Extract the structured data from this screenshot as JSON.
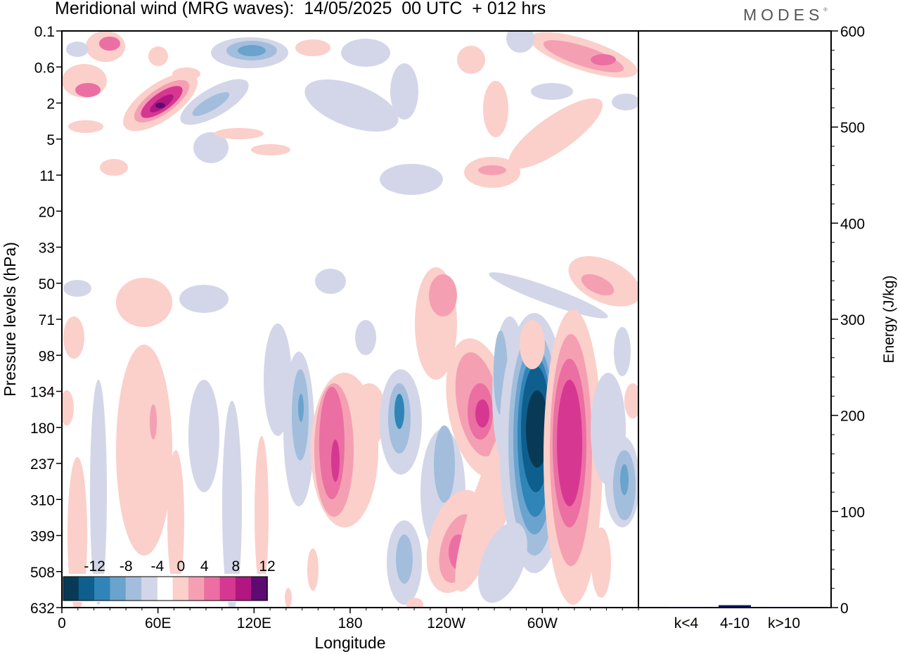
{
  "title": "Meridional wind (MRG waves):  14/05/2025  00 UTC  + 012 hrs",
  "logo": "MODES",
  "chart_data": [
    {
      "type": "heatmap",
      "title": "Meridional wind (MRG waves):  14/05/2025  00 UTC  + 012 hrs",
      "xlabel": "Longitude",
      "ylabel": "Pressure levels (hPa)",
      "x_ticks": [
        "0",
        "60E",
        "120E",
        "180",
        "120W",
        "60W"
      ],
      "x_tick_degrees": [
        0,
        60,
        120,
        180,
        240,
        300
      ],
      "xlim": [
        0,
        360
      ],
      "y_ticks": [
        "0.1",
        "0.6",
        "2",
        "5",
        "11",
        "20",
        "33",
        "50",
        "71",
        "98",
        "134",
        "180",
        "237",
        "310",
        "399",
        "508",
        "632"
      ],
      "colorbar": {
        "tick_labels": [
          "-12",
          "-8",
          "-4",
          "0",
          "4",
          "8",
          "12"
        ],
        "levels": [
          -14,
          -12,
          -10,
          -8,
          -6,
          -4,
          -2,
          2,
          4,
          6,
          8,
          10,
          12,
          14
        ],
        "colors": [
          "#083a56",
          "#0e5f8e",
          "#2f85b8",
          "#6aa3cd",
          "#a3bedc",
          "#d3d6e8",
          "#ffffff",
          "#fbcfca",
          "#f59fb3",
          "#eb6fa2",
          "#d63891",
          "#b11681",
          "#5d0b70"
        ],
        "placement": "bottom-left"
      },
      "features": [
        {
          "lon": 295,
          "level": "180",
          "value": -14
        },
        {
          "lon": 316,
          "level": "180",
          "value": 11
        },
        {
          "lon": 261,
          "level": "180",
          "value": 9
        },
        {
          "lon": 247,
          "level": "508",
          "value": 8
        },
        {
          "lon": 171,
          "level": "237",
          "value": 10
        },
        {
          "lon": 210,
          "level": "180",
          "value": -7
        },
        {
          "lon": 58,
          "level": "2",
          "value": 13
        },
        {
          "lon": 331,
          "level": "0.6",
          "value": 8
        },
        {
          "lon": 113,
          "level": "0.1",
          "value": -7
        }
      ]
    },
    {
      "type": "bar",
      "ylabel": "Energy (J/kg)",
      "ylim": [
        0,
        600
      ],
      "y_ticks": [
        "0",
        "100",
        "200",
        "300",
        "400",
        "500",
        "600"
      ],
      "categories": [
        "k<4",
        "4-10",
        "k>10"
      ],
      "values": [
        0.5,
        2.5,
        0.5
      ],
      "bar_colors": [
        "#0a1050",
        "#0a1050",
        "#0a1050"
      ]
    }
  ]
}
